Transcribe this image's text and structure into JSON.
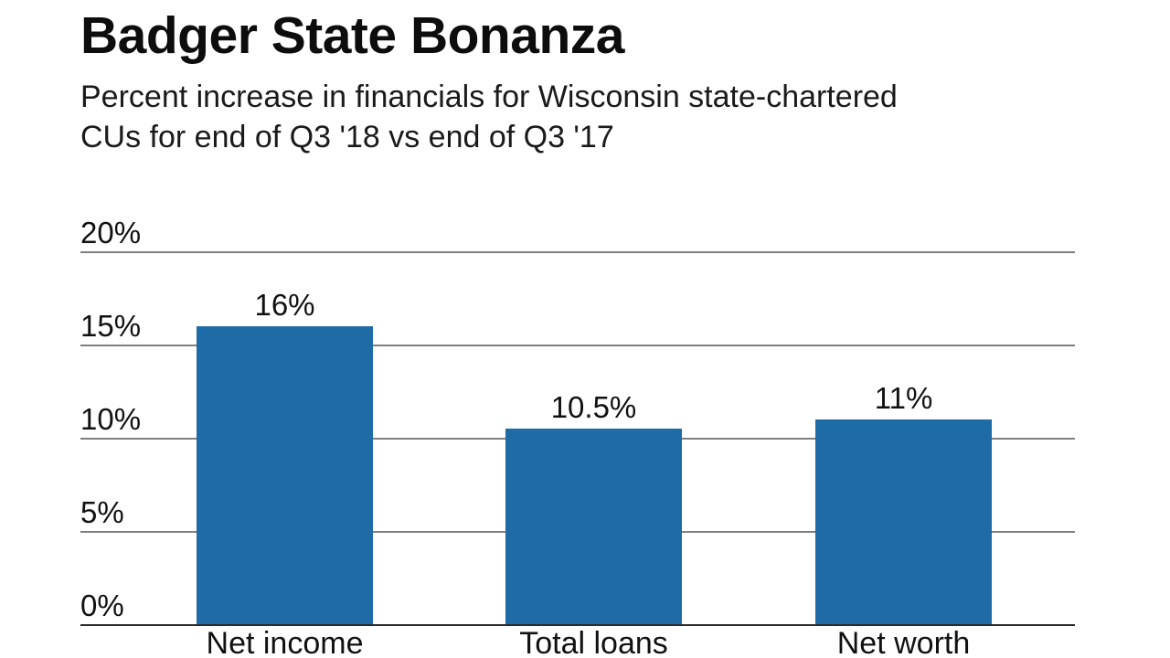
{
  "header": {
    "title": "Badger State Bonanza",
    "subtitle_lines": [
      "Percent increase in financials for Wisconsin state-chartered",
      "CUs for end of Q3 '18 vs end of Q3 '17"
    ]
  },
  "chart_data": {
    "type": "bar",
    "title": "Badger State Bonanza",
    "subtitle": "Percent increase in financials for Wisconsin state-chartered CUs for end of Q3 '18 vs end of Q3 '17",
    "categories": [
      "Net income",
      "Total loans",
      "Net worth"
    ],
    "values": [
      16,
      10.5,
      11
    ],
    "value_labels": [
      "16%",
      "10.5%",
      "11%"
    ],
    "xlabel": "",
    "ylabel": "",
    "ylim": [
      0,
      20
    ],
    "ytick_values": [
      20,
      15,
      10,
      5,
      0
    ],
    "ytick_labels": [
      "20%",
      "15%",
      "10%",
      "5%",
      "0%"
    ],
    "grid": true,
    "legend": false,
    "colors": {
      "bar": "#1e6ba6",
      "gridline": "#7f7f7f",
      "axis": "#2b2b2b",
      "text": "#111111"
    }
  }
}
